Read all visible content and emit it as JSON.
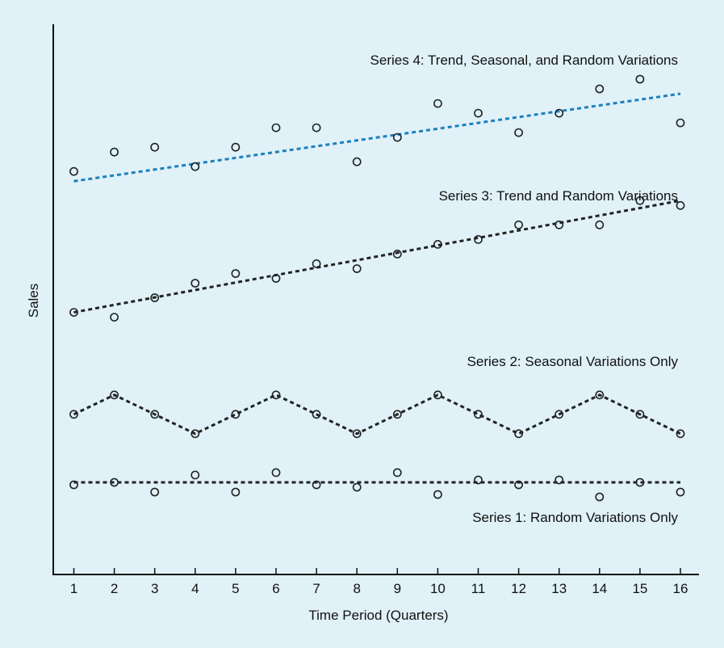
{
  "chart_data": {
    "type": "scatter",
    "xlabel": "Time Period (Quarters)",
    "ylabel": "Sales",
    "x": [
      1,
      2,
      3,
      4,
      5,
      6,
      7,
      8,
      9,
      10,
      11,
      12,
      13,
      14,
      15,
      16
    ],
    "xlim": [
      0.5,
      16.5
    ],
    "ylim": [
      0,
      100
    ],
    "yticks_shown": false,
    "grid": false,
    "legend": "none",
    "series": [
      {
        "name": "Series 4: Trend, Seasonal, and Random Variations",
        "color": "#1b7fbf",
        "points": [
          81,
          85,
          86,
          82,
          86,
          90,
          90,
          83,
          88,
          95,
          93,
          89,
          93,
          98,
          100,
          91
        ],
        "line_type": "trend",
        "line_values": [
          79,
          97
        ]
      },
      {
        "name": "Series 3: Trend and Random Variations",
        "color": "#222222",
        "points": [
          52,
          51,
          55,
          58,
          60,
          59,
          62,
          61,
          64,
          66,
          67,
          70,
          70,
          70,
          75,
          74
        ],
        "line_type": "trend",
        "line_values": [
          52,
          75
        ]
      },
      {
        "name": "Series 2: Seasonal Variations Only",
        "color": "#222222",
        "points": [
          31,
          35,
          31,
          27,
          31,
          35,
          31,
          27,
          31,
          35,
          31,
          27,
          31,
          35,
          31,
          27
        ],
        "line_type": "connect"
      },
      {
        "name": "Series 1: Random Variations Only",
        "color": "#222222",
        "points": [
          16.5,
          17,
          15,
          18.5,
          15,
          19,
          16.5,
          16,
          19,
          14.5,
          17.5,
          16.5,
          17.5,
          14,
          17,
          15
        ],
        "line_type": "flat",
        "line_values": [
          17,
          17
        ]
      }
    ]
  }
}
